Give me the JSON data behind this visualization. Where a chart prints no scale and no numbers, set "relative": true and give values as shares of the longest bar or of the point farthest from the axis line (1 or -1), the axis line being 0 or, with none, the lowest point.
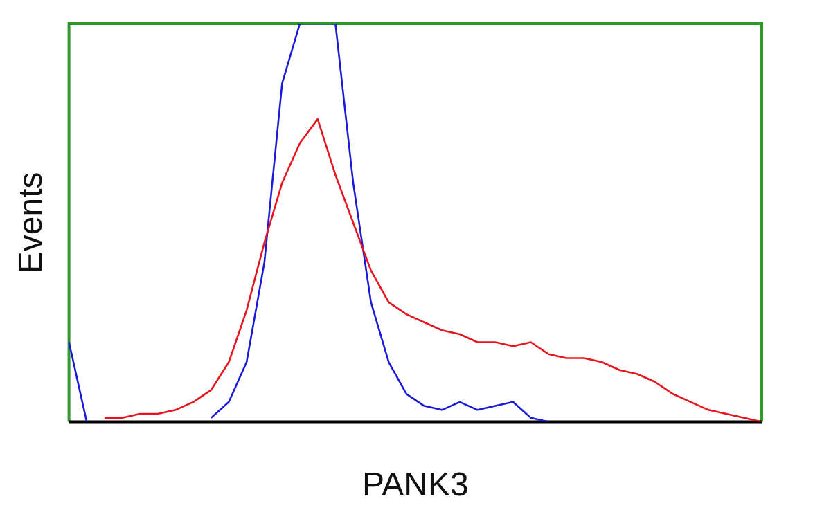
{
  "chart_data": {
    "type": "line",
    "xlabel": "PANK3",
    "ylabel": "Events",
    "relative": true,
    "legend": false,
    "grid": false,
    "marker": "none",
    "line_style": "solid",
    "categories": [
      null,
      null,
      null,
      null,
      null,
      null,
      null,
      null,
      null,
      null,
      null,
      null,
      null,
      null,
      null,
      null,
      null,
      null,
      null,
      null,
      null,
      null,
      null,
      null,
      null,
      null,
      null,
      null,
      null,
      null,
      null,
      null,
      null,
      null,
      null,
      null,
      null,
      null,
      null,
      null
    ],
    "series": [
      {
        "color": "#e8141e",
        "values": [
          null,
          null,
          0.01,
          0.01,
          0.02,
          0.02,
          0.03,
          0.05,
          0.08,
          0.15,
          0.28,
          0.45,
          0.6,
          0.7,
          0.76,
          0.62,
          0.5,
          0.38,
          0.3,
          0.27,
          0.25,
          0.23,
          0.22,
          0.2,
          0.2,
          0.19,
          0.2,
          0.17,
          0.16,
          0.16,
          0.15,
          0.13,
          0.12,
          0.1,
          0.07,
          0.05,
          0.03,
          0.02,
          0.01,
          0
        ]
      },
      {
        "color": "#1a1adc",
        "values": [
          0.2,
          0,
          null,
          null,
          null,
          null,
          null,
          null,
          0.01,
          0.05,
          0.15,
          0.4,
          0.85,
          1,
          1,
          1,
          0.6,
          0.3,
          0.15,
          0.07,
          0.04,
          0.03,
          0.05,
          0.03,
          0.04,
          0.05,
          0.01,
          0,
          null,
          null,
          null,
          null,
          null,
          null,
          null,
          null,
          null,
          null,
          null,
          null
        ]
      }
    ]
  }
}
